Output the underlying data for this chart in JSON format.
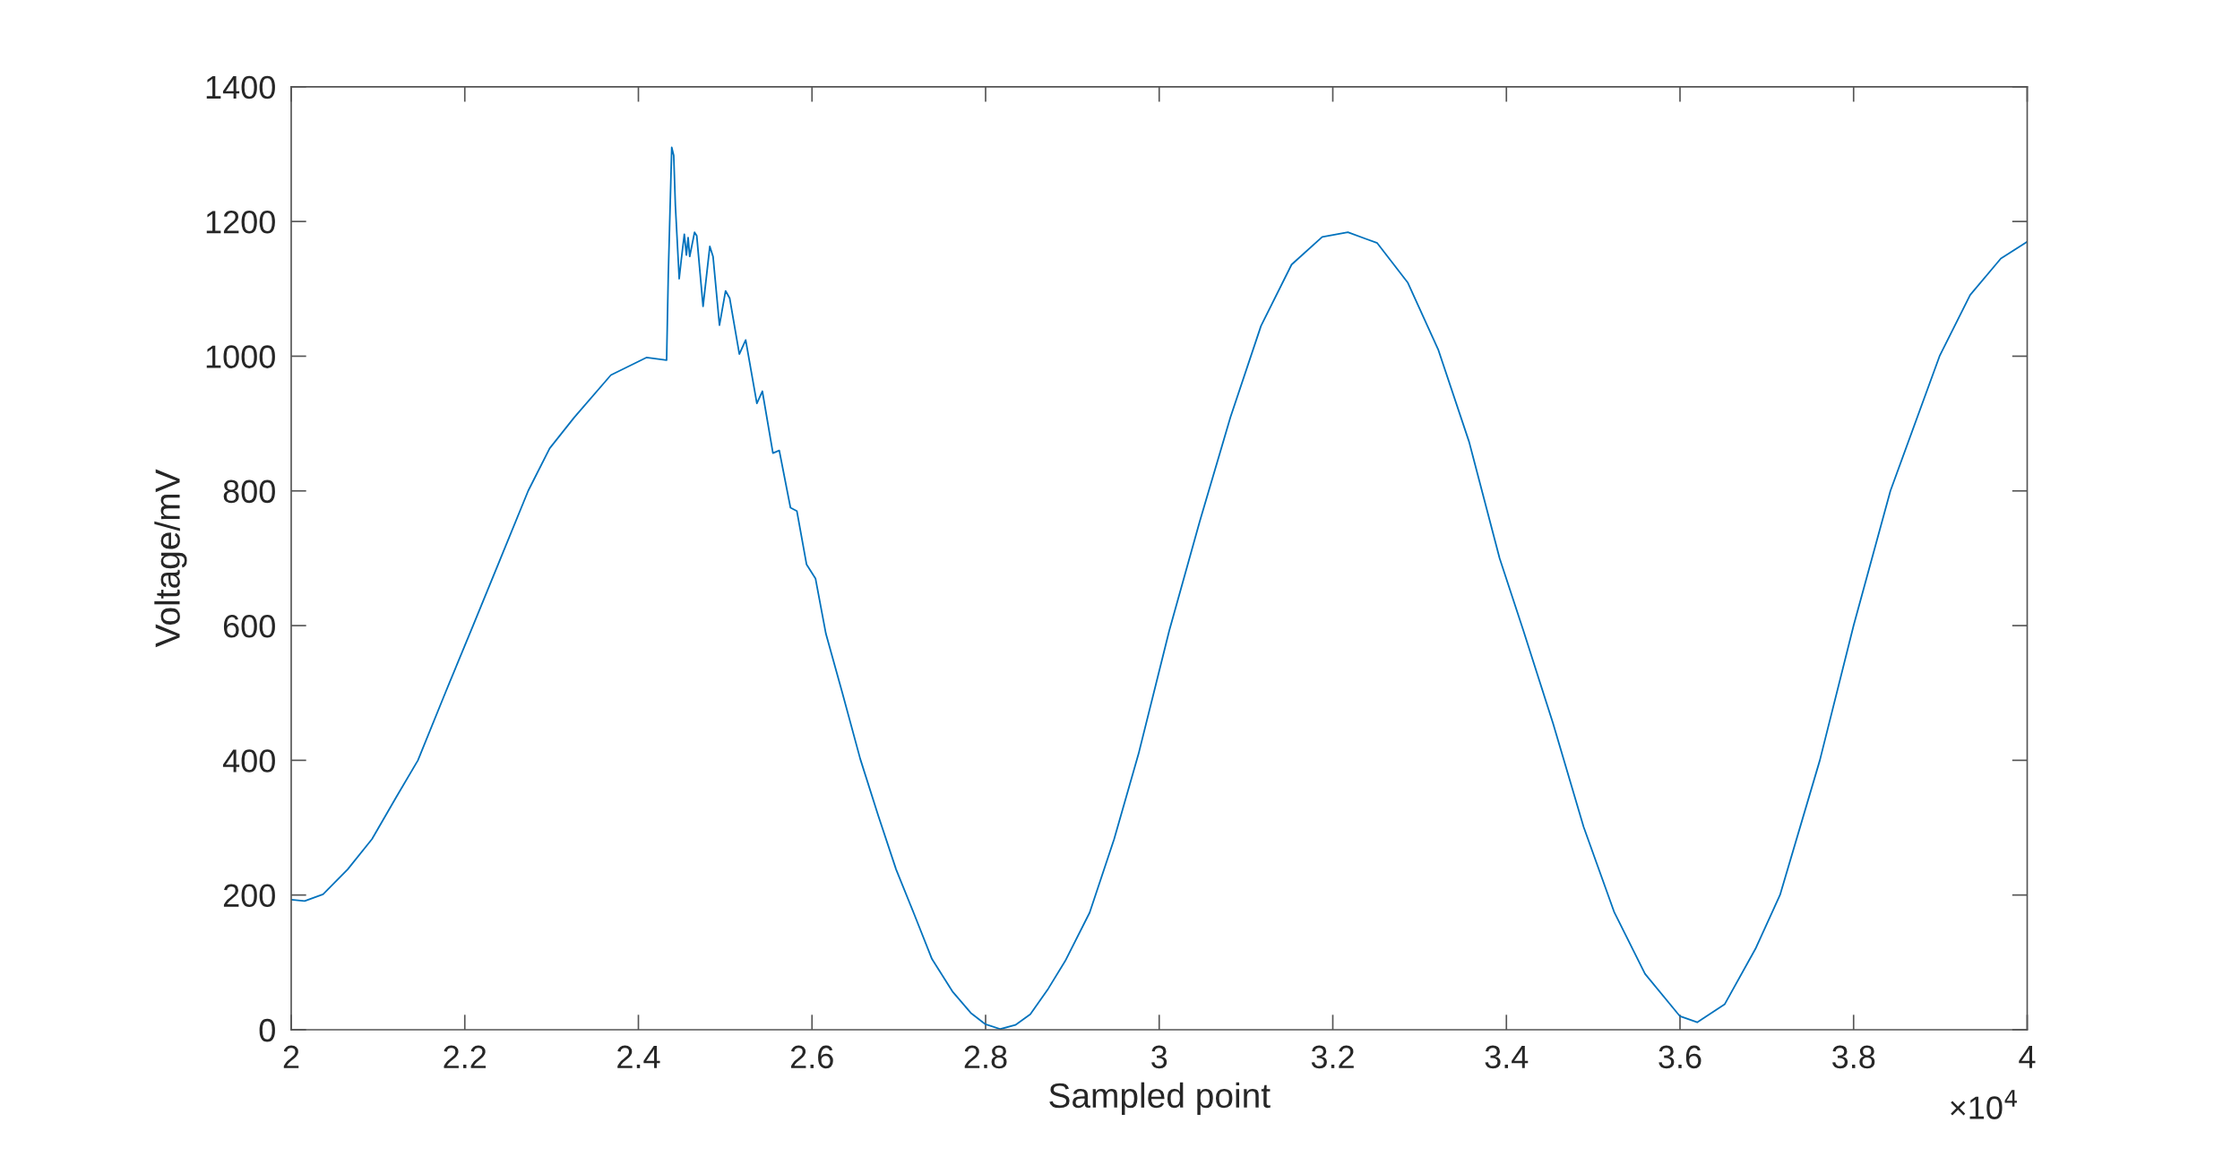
{
  "chart_data": {
    "type": "line",
    "xlabel": "Sampled point",
    "ylabel": "Voltage/mV",
    "annotations": [
      "×10$^{4}$"
    ],
    "xlim": [
      2,
      4
    ],
    "ylim": [
      0,
      1400
    ],
    "xticks": [
      2,
      2.2,
      2.4,
      2.6,
      2.8,
      3,
      3.2,
      3.4,
      3.6,
      3.8,
      4
    ],
    "yticks": [
      0,
      200,
      400,
      600,
      800,
      1000,
      1200,
      1400
    ],
    "grid": false,
    "legend": false,
    "marker": "none",
    "line_style": "solid",
    "series": [
      {
        "color": "#0072bd",
        "x": [
          2.0,
          2.0155,
          2.0367,
          2.065,
          2.0931,
          2.1213,
          2.146,
          2.1778,
          2.2095,
          2.2413,
          2.273,
          2.2977,
          2.326,
          2.3683,
          2.4092,
          2.4325,
          2.4344,
          2.4384,
          2.4407,
          2.4426,
          2.447,
          2.4492,
          2.4529,
          2.4553,
          2.4573,
          2.4591,
          2.4647,
          2.4672,
          2.4745,
          2.4823,
          2.486,
          2.4934,
          2.5004,
          2.5052,
          2.5163,
          2.5236,
          2.5365,
          2.5428,
          2.555,
          2.5623,
          2.5752,
          2.5826,
          2.5937,
          2.604,
          2.616,
          2.635,
          2.6556,
          2.6763,
          2.6969,
          2.7176,
          2.7382,
          2.7623,
          2.7829,
          2.7999,
          2.8171,
          2.8343,
          2.8515,
          2.8722,
          2.8917,
          2.9199,
          2.9481,
          2.9763,
          3.0115,
          3.0468,
          3.082,
          3.1173,
          3.1525,
          3.1878,
          3.2174,
          3.2512,
          3.2865,
          3.3217,
          3.357,
          3.3922,
          3.4197,
          3.4537,
          3.489,
          3.5244,
          3.5597,
          3.6,
          3.6198,
          3.6516,
          3.6869,
          3.7152,
          3.7611,
          3.8,
          3.8424,
          3.899,
          3.9343,
          3.9696,
          4.0
        ],
        "values": [
          193,
          191,
          201,
          238,
          283,
          346,
          400,
          501,
          600,
          700,
          800,
          863,
          909,
          972,
          998,
          994,
          1119,
          1310,
          1298,
          1224,
          1115,
          1141,
          1181,
          1150,
          1176,
          1148,
          1184,
          1179,
          1074,
          1163,
          1148,
          1046,
          1097,
          1086,
          1003,
          1024,
          930,
          948,
          856,
          860,
          775,
          770,
          691,
          670,
          588,
          500,
          402,
          318,
          238,
          172,
          105,
          56,
          25,
          8,
          1,
          7,
          23,
          61,
          102,
          174,
          283,
          410,
          592,
          755,
          909,
          1045,
          1136,
          1177,
          1184,
          1168,
          1109,
          1009,
          873,
          700,
          592,
          455,
          301,
          174,
          83,
          20,
          11,
          38,
          120,
          200,
          400,
          600,
          800,
          1000,
          1091,
          1145,
          1170
        ]
      }
    ]
  }
}
